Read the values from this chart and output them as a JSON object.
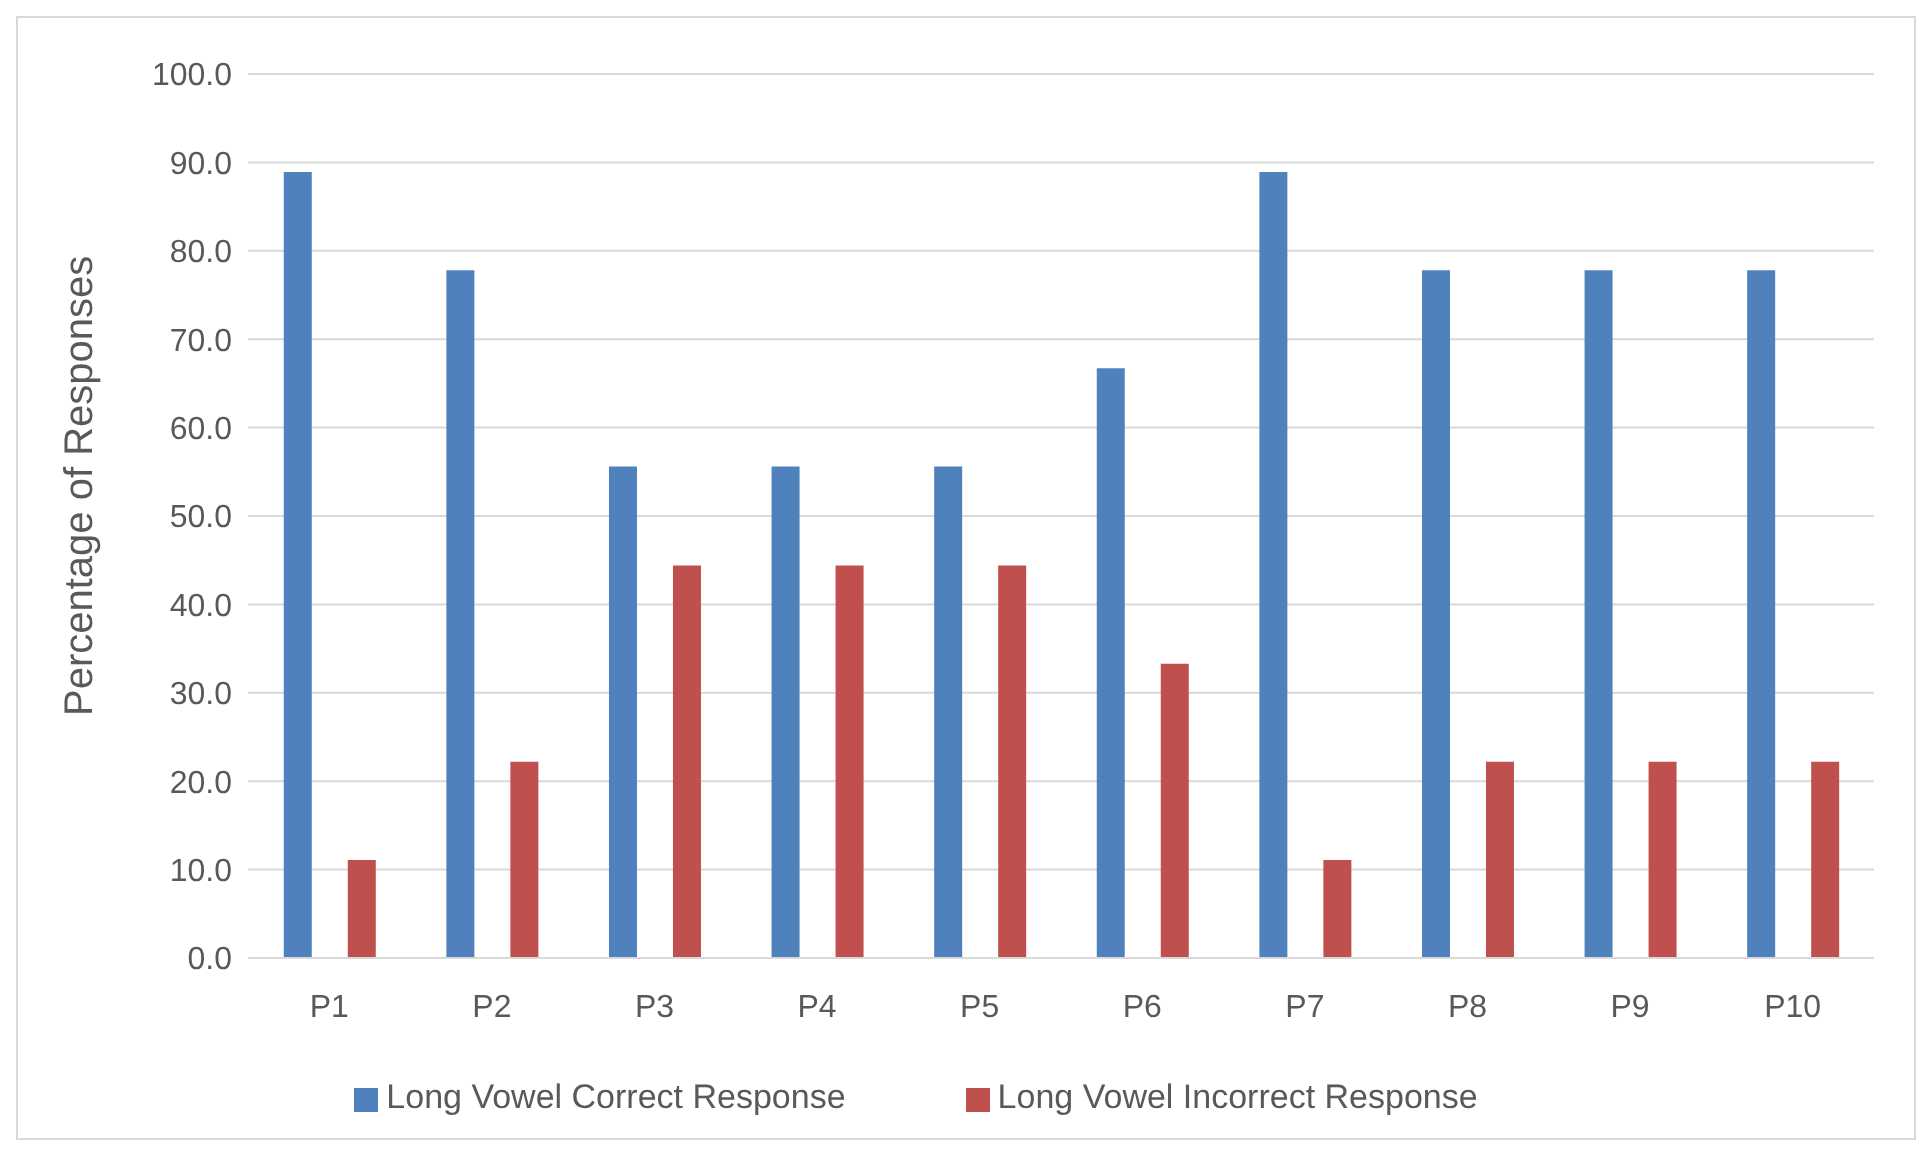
{
  "chart_data": {
    "type": "bar",
    "ylabel": "Percentage of Responses",
    "categories": [
      "P1",
      "P2",
      "P3",
      "P4",
      "P5",
      "P6",
      "P7",
      "P8",
      "P9",
      "P10"
    ],
    "series": [
      {
        "name": "Long Vowel Correct Response",
        "color": "#4f81bd",
        "values": [
          88.9,
          77.8,
          55.6,
          55.6,
          55.6,
          66.7,
          88.9,
          77.8,
          77.8,
          77.8
        ]
      },
      {
        "name": "Long Vowel Incorrect Response",
        "color": "#c0504d",
        "values": [
          11.1,
          22.2,
          44.4,
          44.4,
          44.4,
          33.3,
          11.1,
          22.2,
          22.2,
          22.2
        ]
      }
    ],
    "ylim": [
      0,
      100
    ],
    "yticks": [
      {
        "value": 0,
        "label": "0.0"
      },
      {
        "value": 10,
        "label": "10.0"
      },
      {
        "value": 20,
        "label": "20.0"
      },
      {
        "value": 30,
        "label": "30.0"
      },
      {
        "value": 40,
        "label": "40.0"
      },
      {
        "value": 50,
        "label": "50.0"
      },
      {
        "value": 60,
        "label": "60.0"
      },
      {
        "value": 70,
        "label": "70.0"
      },
      {
        "value": 80,
        "label": "80.0"
      },
      {
        "value": 90,
        "label": "90.0"
      },
      {
        "value": 100,
        "label": "100.0"
      }
    ],
    "grid": "y",
    "legend": "bottom"
  }
}
